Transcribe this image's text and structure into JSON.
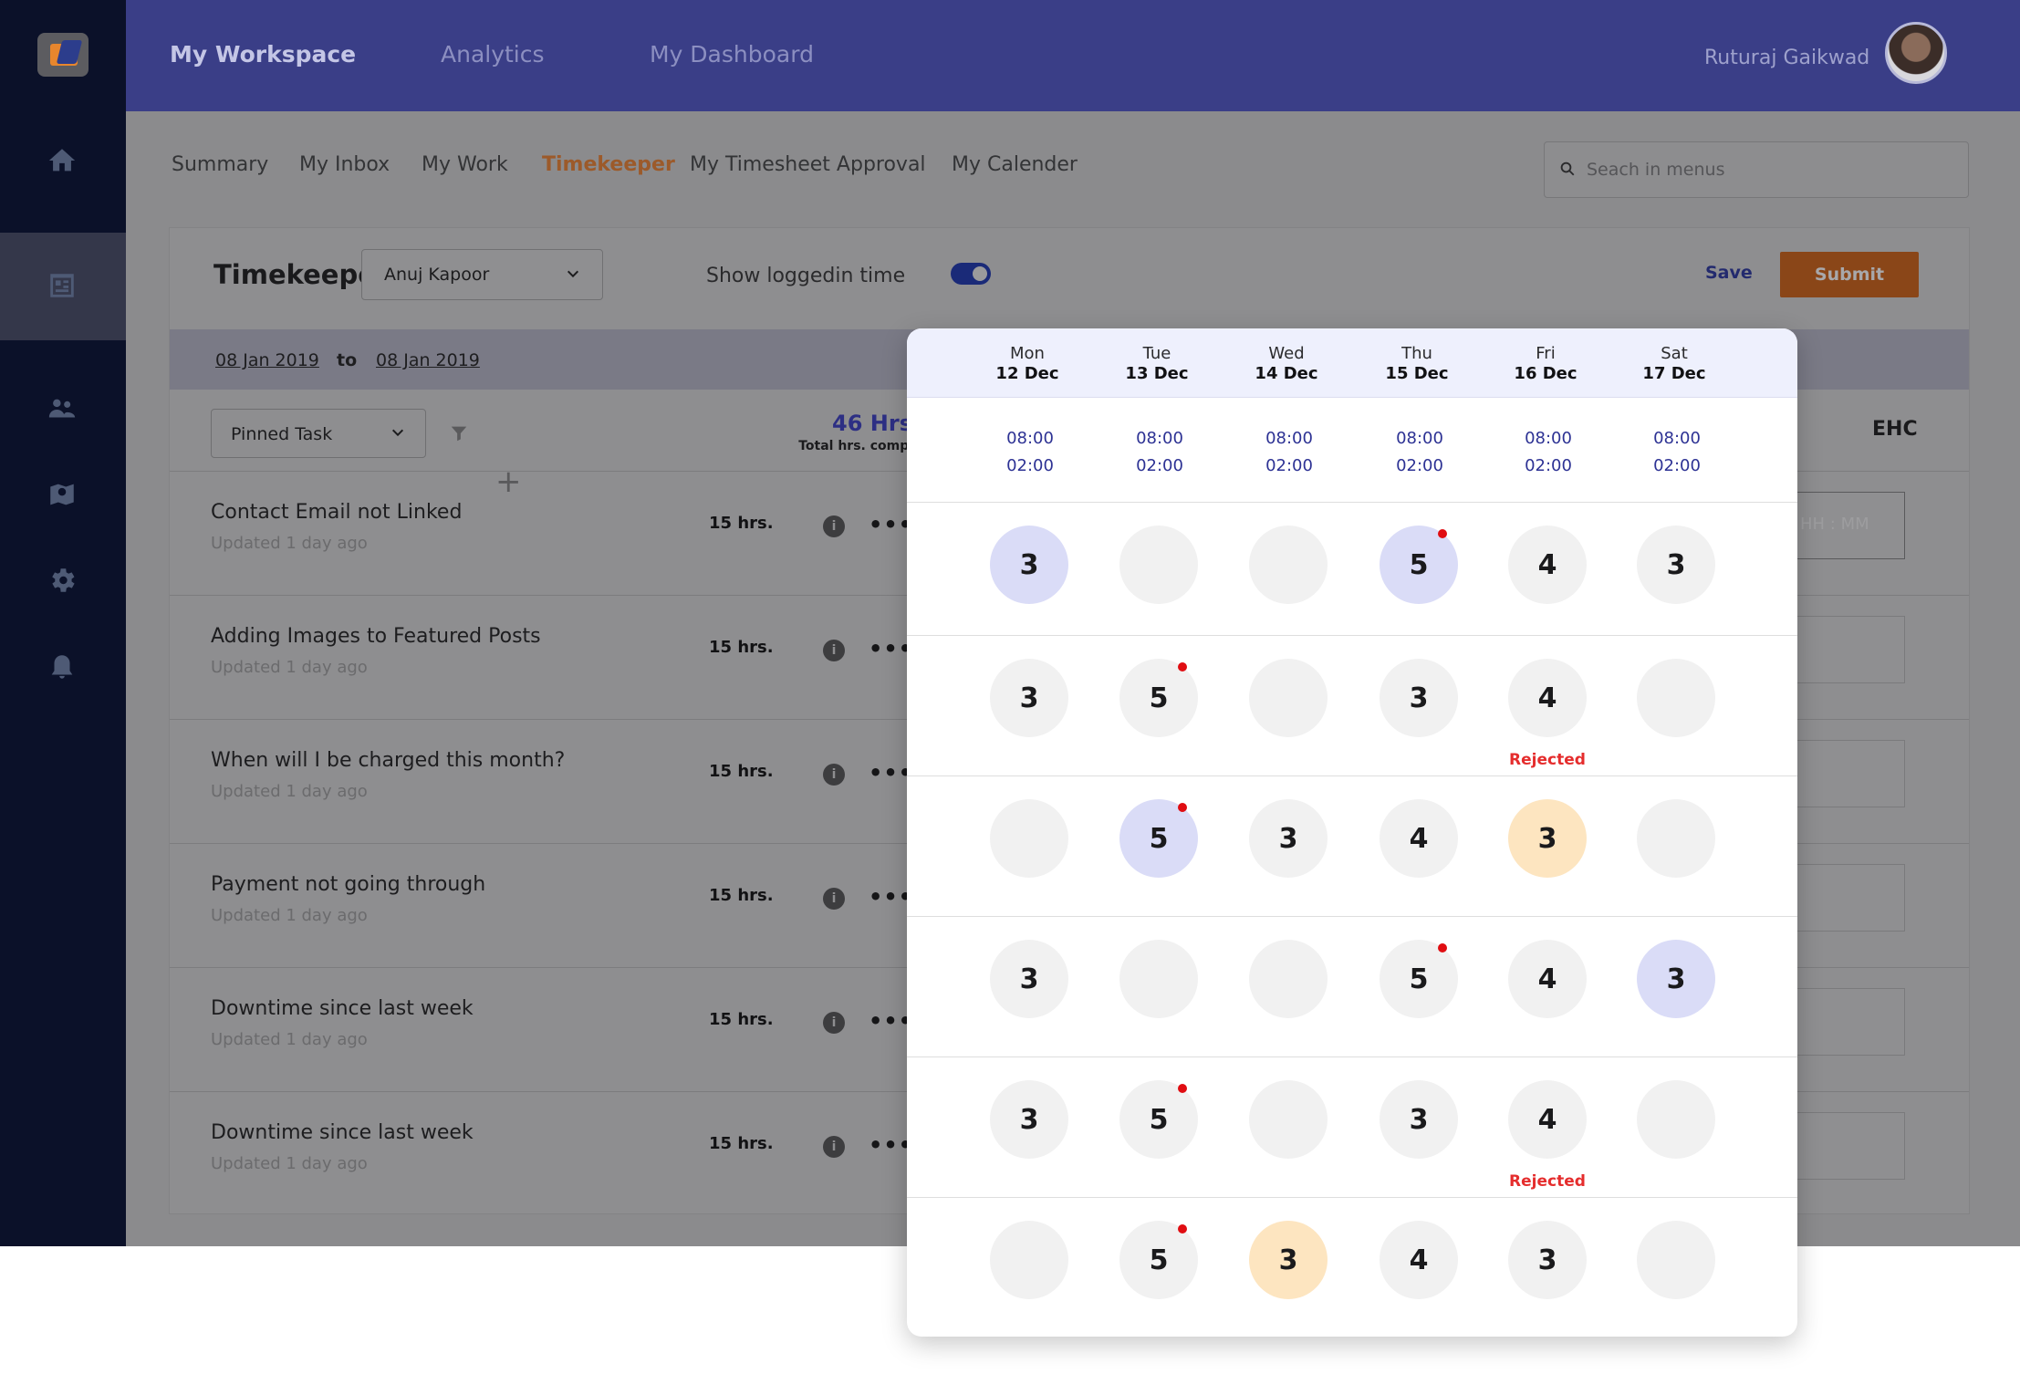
{
  "header": {
    "tabs": [
      {
        "label": "My Workspace",
        "active": true
      },
      {
        "label": "Analytics",
        "active": false
      },
      {
        "label": "My Dashboard",
        "active": false
      }
    ],
    "user_name": "Ruturaj Gaikwad"
  },
  "sidebar": {
    "items": [
      "home-icon",
      "timesheet-icon",
      "team-icon",
      "map-icon",
      "gear-icon",
      "bell-icon"
    ],
    "active_index": 1
  },
  "subnav": {
    "tabs": [
      {
        "label": "Summary",
        "active": false
      },
      {
        "label": "My Inbox",
        "active": false
      },
      {
        "label": "My Work",
        "active": false
      },
      {
        "label": "Timekeeper",
        "active": true
      },
      {
        "label": "My Timesheet Approval",
        "active": false
      },
      {
        "label": "My Calender",
        "active": false
      }
    ],
    "search_placeholder": "Seach in menus"
  },
  "timekeeper": {
    "title": "Timekeeper",
    "employee": "Anuj Kapoor",
    "show_loggedin_label": "Show loggedin time",
    "show_loggedin": true,
    "save_label": "Save",
    "submit_label": "Submit",
    "date_from": "08 Jan 2019",
    "date_to_label": "to",
    "date_to": "08 Jan 2019",
    "filter_value": "Pinned Task",
    "total_hours": "46 Hrs",
    "total_hours_label": "Total hrs. completed",
    "ehc_label": "EHC",
    "hhmm_placeholder": "HH : MM",
    "tasks": [
      {
        "title": "Contact Email not Linked",
        "updated": "Updated 1 day ago",
        "hours": "15 hrs."
      },
      {
        "title": "Adding Images to Featured Posts",
        "updated": "Updated 1 day ago",
        "hours": "15 hrs."
      },
      {
        "title": "When will I be charged this month?",
        "updated": "Updated 1 day ago",
        "hours": "15 hrs."
      },
      {
        "title": "Payment not going through",
        "updated": "Updated 1 day ago",
        "hours": "15 hrs."
      },
      {
        "title": "Downtime since last week",
        "updated": "Updated 1 day ago",
        "hours": "15 hrs."
      },
      {
        "title": "Downtime since last week",
        "updated": "Updated 1 day ago",
        "hours": "15 hrs."
      }
    ]
  },
  "week_panel": {
    "days": [
      {
        "name": "Mon",
        "date": "12 Dec",
        "start": "08:00",
        "end": "02:00"
      },
      {
        "name": "Tue",
        "date": "13 Dec",
        "start": "08:00",
        "end": "02:00"
      },
      {
        "name": "Wed",
        "date": "14 Dec",
        "start": "08:00",
        "end": "02:00"
      },
      {
        "name": "Thu",
        "date": "15 Dec",
        "start": "08:00",
        "end": "02:00"
      },
      {
        "name": "Fri",
        "date": "16 Dec",
        "start": "08:00",
        "end": "02:00"
      },
      {
        "name": "Sat",
        "date": "17 Dec",
        "start": "08:00",
        "end": "02:00"
      }
    ],
    "rejected_label": "Rejected",
    "rows": [
      [
        {
          "v": "3",
          "s": "purple"
        },
        {
          "v": ""
        },
        {
          "v": ""
        },
        {
          "v": "5",
          "s": "purple",
          "dot": true
        },
        {
          "v": "4"
        },
        {
          "v": "3"
        }
      ],
      [
        {
          "v": "3"
        },
        {
          "v": "5",
          "dot": true
        },
        {
          "v": ""
        },
        {
          "v": "3"
        },
        {
          "v": "4",
          "rejected": true
        },
        {
          "v": ""
        }
      ],
      [
        {
          "v": ""
        },
        {
          "v": "5",
          "s": "purple",
          "dot": true
        },
        {
          "v": "3"
        },
        {
          "v": "4"
        },
        {
          "v": "3",
          "s": "orange"
        },
        {
          "v": ""
        }
      ],
      [
        {
          "v": "3"
        },
        {
          "v": ""
        },
        {
          "v": ""
        },
        {
          "v": "5",
          "dot": true
        },
        {
          "v": "4"
        },
        {
          "v": "3",
          "s": "purple"
        }
      ],
      [
        {
          "v": "3"
        },
        {
          "v": "5",
          "dot": true
        },
        {
          "v": ""
        },
        {
          "v": "3"
        },
        {
          "v": "4",
          "rejected": true
        },
        {
          "v": ""
        }
      ],
      [
        {
          "v": ""
        },
        {
          "v": "5",
          "dot": true
        },
        {
          "v": "3",
          "s": "orange"
        },
        {
          "v": "4"
        },
        {
          "v": "3"
        },
        {
          "v": ""
        }
      ]
    ]
  },
  "colors": {
    "header_bg": "#3a3e87",
    "sidebar_bg": "#0b1129",
    "accent_orange": "#e7862d",
    "reject_red": "#e52d2d"
  }
}
